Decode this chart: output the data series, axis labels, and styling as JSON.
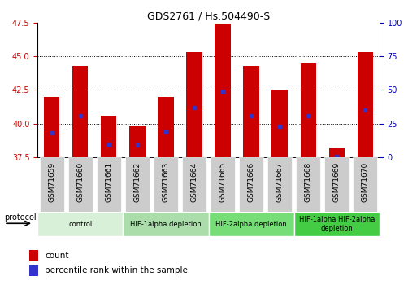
{
  "title": "GDS2761 / Hs.504490-S",
  "samples": [
    "GSM71659",
    "GSM71660",
    "GSM71661",
    "GSM71662",
    "GSM71663",
    "GSM71664",
    "GSM71665",
    "GSM71666",
    "GSM71667",
    "GSM71668",
    "GSM71669",
    "GSM71670"
  ],
  "bar_base": 37.5,
  "bar_tops": [
    42.0,
    44.3,
    40.6,
    39.8,
    42.0,
    45.3,
    47.4,
    44.3,
    42.5,
    44.5,
    38.2,
    45.3
  ],
  "blue_values": [
    39.3,
    40.6,
    38.5,
    38.4,
    39.4,
    41.2,
    42.4,
    40.6,
    39.8,
    40.6,
    37.6,
    41.0
  ],
  "ylim_left": [
    37.5,
    47.5
  ],
  "ylim_right": [
    0,
    100
  ],
  "yticks_left": [
    37.5,
    40.0,
    42.5,
    45.0,
    47.5
  ],
  "yticks_right": [
    0,
    25,
    50,
    75,
    100
  ],
  "bar_color": "#cc0000",
  "blue_color": "#3333cc",
  "bar_width": 0.55,
  "groups": [
    {
      "label": "control",
      "start": 0,
      "end": 3,
      "color": "#d8f0d8"
    },
    {
      "label": "HIF-1alpha depletion",
      "start": 3,
      "end": 6,
      "color": "#aaddaa"
    },
    {
      "label": "HIF-2alpha depletion",
      "start": 6,
      "end": 9,
      "color": "#77dd77"
    },
    {
      "label": "HIF-1alpha HIF-2alpha\ndepletion",
      "start": 9,
      "end": 12,
      "color": "#44cc44"
    }
  ],
  "protocol_label": "protocol",
  "legend_count_label": "count",
  "legend_pct_label": "percentile rank within the sample",
  "background_color": "#ffffff",
  "plot_bg_color": "#ffffff",
  "tick_label_color_left": "#cc0000",
  "tick_label_color_right": "#0000bb",
  "xtick_bg_color": "#cccccc",
  "grid_color": "#000000",
  "grid_style": "dotted"
}
